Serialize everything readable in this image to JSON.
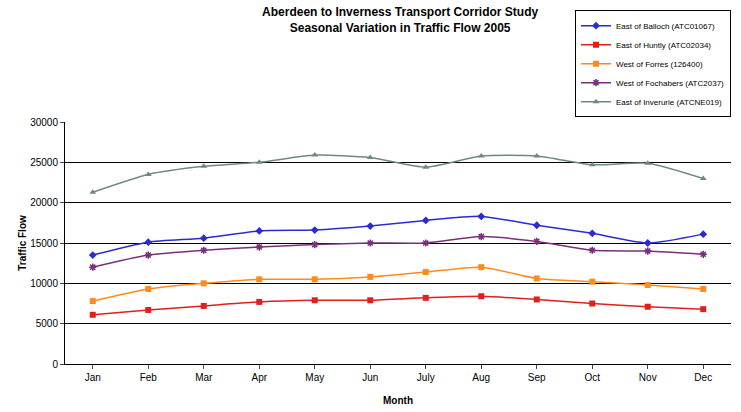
{
  "chart_data": {
    "type": "line",
    "title": "Aberdeen to Inverness Transport Corridor Study",
    "subtitle": "Seasonal Variation in Traffic Flow 2005",
    "x_label": "Month",
    "y_label": "Traffic Flow",
    "categories": [
      "Jan",
      "Feb",
      "Mar",
      "Apr",
      "May",
      "Jun",
      "July",
      "Aug",
      "Sep",
      "Oct",
      "Nov",
      "Dec"
    ],
    "series": [
      {
        "name": "East of Balloch (ATC01067)",
        "color": "#2a2ad6",
        "marker": "diamond",
        "line_style": "smooth",
        "values": [
          13500,
          15100,
          15600,
          16500,
          16600,
          17100,
          17800,
          18300,
          17200,
          16200,
          15000,
          16100
        ]
      },
      {
        "name": "East of Huntly (ATC02034)",
        "color": "#e0201c",
        "marker": "square",
        "line_style": "smooth",
        "values": [
          6100,
          6700,
          7200,
          7700,
          7900,
          7900,
          8200,
          8400,
          8000,
          7500,
          7100,
          6800
        ]
      },
      {
        "name": "West of Forres (126400)",
        "color": "#ff8a1e",
        "marker": "square",
        "line_style": "smooth",
        "values": [
          7800,
          9300,
          10000,
          10500,
          10500,
          10800,
          11400,
          12000,
          10600,
          10200,
          9800,
          9300
        ]
      },
      {
        "name": "West of Fochabers (ATC2037)",
        "color": "#7a2f7a",
        "marker": "asterisk",
        "line_style": "smooth",
        "values": [
          12000,
          13500,
          14100,
          14500,
          14800,
          15000,
          15000,
          15800,
          15200,
          14100,
          14000,
          13600
        ]
      },
      {
        "name": "East of Inverurie (ATCNE019)",
        "color": "#6e8a80",
        "marker": "triangle",
        "line_style": "smooth",
        "values": [
          21300,
          23500,
          24500,
          25000,
          25900,
          25600,
          24400,
          25800,
          25800,
          24700,
          24900,
          23000
        ]
      }
    ],
    "ylim": [
      0,
      30000
    ],
    "yticks": [
      0,
      5000,
      10000,
      15000,
      20000,
      25000,
      30000
    ],
    "grid": true,
    "legend": "top-right"
  }
}
